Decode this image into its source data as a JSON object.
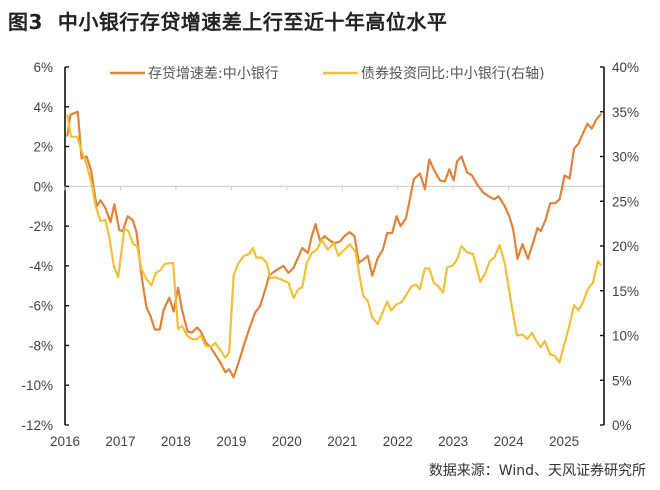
{
  "title": "图3  中小银行存贷增速差上行至近十年高位水平",
  "source": "数据来源：Wind、天风证券研究所",
  "chart_data": {
    "type": "line",
    "title": "图3  中小银行存贷增速差上行至近十年高位水平",
    "x_ticks": [
      "2016",
      "2017",
      "2018",
      "2019",
      "2020",
      "2021",
      "2022",
      "2023",
      "2024",
      "2025"
    ],
    "xlim": [
      2016,
      2025.72
    ],
    "y_left": {
      "ticks": [
        "6%",
        "4%",
        "2%",
        "0%",
        "-2%",
        "-4%",
        "-6%",
        "-8%",
        "-10%",
        "-12%"
      ],
      "ylim": [
        -12,
        6
      ],
      "unit": "%"
    },
    "y_right": {
      "ticks": [
        "40%",
        "35%",
        "30%",
        "25%",
        "20%",
        "15%",
        "10%",
        "5%",
        "0%"
      ],
      "ylim": [
        0,
        40
      ],
      "unit": "%"
    },
    "zero_line": true,
    "grid": false,
    "legend_position": "top",
    "series": [
      {
        "name": "存贷增速差:中小银行",
        "axis": "left",
        "color": "#E0823A",
        "x": [
          2016.04,
          2016.1,
          2016.23,
          2016.3,
          2016.39,
          2016.47,
          2016.57,
          2016.64,
          2016.73,
          2016.82,
          2016.89,
          2016.98,
          2017.04,
          2017.13,
          2017.22,
          2017.29,
          2017.38,
          2017.47,
          2017.54,
          2017.62,
          2017.71,
          2017.78,
          2017.88,
          2017.96,
          2018.04,
          2018.11,
          2018.21,
          2018.29,
          2018.38,
          2018.45,
          2018.54,
          2018.63,
          2018.72,
          2018.81,
          2018.89,
          2018.96,
          2019.04,
          2019.13,
          2019.23,
          2019.33,
          2019.43,
          2019.52,
          2019.61,
          2019.68,
          2019.79,
          2019.94,
          2020.03,
          2020.12,
          2020.2,
          2020.28,
          2020.38,
          2020.45,
          2020.52,
          2020.6,
          2020.68,
          2020.76,
          2020.85,
          2020.95,
          2021.04,
          2021.13,
          2021.22,
          2021.3,
          2021.37,
          2021.46,
          2021.54,
          2021.64,
          2021.73,
          2021.81,
          2021.9,
          2021.98,
          2022.05,
          2022.15,
          2022.22,
          2022.29,
          2022.4,
          2022.49,
          2022.57,
          2022.65,
          2022.76,
          2022.85,
          2022.93,
          2023.01,
          2023.07,
          2023.15,
          2023.25,
          2023.34,
          2023.43,
          2023.54,
          2023.64,
          2023.74,
          2023.82,
          2023.92,
          2024.01,
          2024.08,
          2024.16,
          2024.25,
          2024.35,
          2024.44,
          2024.52,
          2024.58,
          2024.67,
          2024.75,
          2024.84,
          2024.92,
          2025.01,
          2025.1,
          2025.18,
          2025.26,
          2025.34,
          2025.42,
          2025.5,
          2025.58,
          2025.67
        ],
        "y": [
          2.5,
          3.6,
          3.75,
          1.4,
          1.5,
          0.8,
          -1.0,
          -0.7,
          -1.1,
          -1.8,
          -0.9,
          -2.2,
          -2.25,
          -1.5,
          -1.7,
          -2.3,
          -4.5,
          -6.1,
          -6.5,
          -7.2,
          -7.2,
          -6.2,
          -5.6,
          -6.3,
          -5.1,
          -6.2,
          -7.3,
          -7.35,
          -7.1,
          -7.3,
          -7.85,
          -8.1,
          -8.5,
          -8.9,
          -9.35,
          -9.2,
          -9.6,
          -8.85,
          -7.95,
          -7.1,
          -6.35,
          -6.0,
          -5.2,
          -4.5,
          -4.25,
          -4.0,
          -4.35,
          -4.1,
          -3.6,
          -3.1,
          -3.35,
          -2.5,
          -1.9,
          -2.75,
          -2.5,
          -2.7,
          -2.85,
          -2.8,
          -2.5,
          -2.3,
          -2.5,
          -3.85,
          -3.7,
          -3.5,
          -4.5,
          -3.6,
          -3.2,
          -2.35,
          -2.35,
          -1.5,
          -2.0,
          -1.6,
          -0.65,
          0.35,
          0.65,
          -0.15,
          1.35,
          0.85,
          0.3,
          0.25,
          0.85,
          0.3,
          1.25,
          1.5,
          0.7,
          0.55,
          0.1,
          -0.3,
          -0.5,
          -0.65,
          -0.5,
          -0.95,
          -1.5,
          -2.15,
          -3.65,
          -2.9,
          -3.65,
          -2.85,
          -2.1,
          -2.25,
          -1.65,
          -0.85,
          -0.85,
          -0.65,
          0.55,
          0.4,
          1.9,
          2.15,
          2.65,
          3.15,
          2.9,
          3.35,
          3.65
        ]
      },
      {
        "name": "债券投资同比:中小银行(右轴)",
        "axis": "right",
        "color": "#F0C03A",
        "x": [
          2016.04,
          2016.11,
          2016.22,
          2016.28,
          2016.39,
          2016.49,
          2016.55,
          2016.64,
          2016.73,
          2016.8,
          2016.88,
          2016.96,
          2017.07,
          2017.14,
          2017.23,
          2017.3,
          2017.38,
          2017.47,
          2017.56,
          2017.64,
          2017.72,
          2017.8,
          2017.95,
          2018.04,
          2018.11,
          2018.2,
          2018.29,
          2018.38,
          2018.45,
          2018.54,
          2018.63,
          2018.71,
          2018.81,
          2018.89,
          2018.96,
          2019.04,
          2019.13,
          2019.23,
          2019.32,
          2019.39,
          2019.45,
          2019.55,
          2019.64,
          2019.7,
          2019.79,
          2019.88,
          2020.03,
          2020.12,
          2020.21,
          2020.28,
          2020.36,
          2020.45,
          2020.54,
          2020.63,
          2020.74,
          2020.85,
          2020.93,
          2021.04,
          2021.14,
          2021.24,
          2021.31,
          2021.38,
          2021.46,
          2021.54,
          2021.64,
          2021.73,
          2021.81,
          2021.88,
          2021.98,
          2022.07,
          2022.16,
          2022.25,
          2022.33,
          2022.4,
          2022.49,
          2022.57,
          2022.65,
          2022.73,
          2022.82,
          2022.89,
          2022.99,
          2023.07,
          2023.15,
          2023.25,
          2023.36,
          2023.49,
          2023.58,
          2023.66,
          2023.74,
          2023.84,
          2023.93,
          2024.04,
          2024.15,
          2024.25,
          2024.34,
          2024.42,
          2024.5,
          2024.58,
          2024.65,
          2024.75,
          2024.84,
          2024.92,
          2024.99,
          2025.08,
          2025.18,
          2025.26,
          2025.34,
          2025.43,
          2025.52,
          2025.61,
          2025.67
        ],
        "y": [
          34.7,
          32.2,
          32.2,
          31.0,
          29.1,
          26.7,
          24.5,
          22.8,
          22.9,
          20.9,
          17.8,
          16.5,
          21.9,
          21.7,
          20.2,
          20.0,
          17.4,
          16.3,
          15.6,
          17.0,
          17.3,
          18.0,
          18.1,
          10.7,
          11.1,
          10.0,
          9.6,
          9.6,
          10.0,
          8.8,
          8.7,
          9.2,
          8.3,
          7.5,
          8.1,
          16.7,
          18.1,
          18.9,
          19.1,
          19.8,
          18.7,
          18.7,
          18.1,
          16.4,
          16.5,
          16.3,
          15.9,
          14.2,
          15.2,
          15.4,
          18.1,
          19.2,
          19.6,
          20.7,
          19.6,
          20.3,
          18.9,
          19.6,
          20.2,
          19.3,
          16.7,
          14.4,
          13.9,
          12.0,
          11.3,
          12.6,
          13.8,
          12.8,
          13.5,
          13.7,
          14.6,
          15.5,
          15.7,
          15.2,
          17.5,
          17.5,
          15.9,
          15.5,
          14.8,
          17.6,
          17.8,
          18.5,
          20.0,
          19.3,
          19.1,
          16.0,
          17.0,
          18.3,
          18.7,
          20.1,
          18.1,
          13.9,
          10.0,
          10.1,
          9.6,
          10.3,
          9.4,
          8.7,
          9.4,
          7.9,
          7.7,
          7.0,
          8.7,
          10.7,
          13.4,
          12.8,
          13.7,
          15.2,
          15.9,
          18.3,
          17.8
        ]
      }
    ]
  }
}
